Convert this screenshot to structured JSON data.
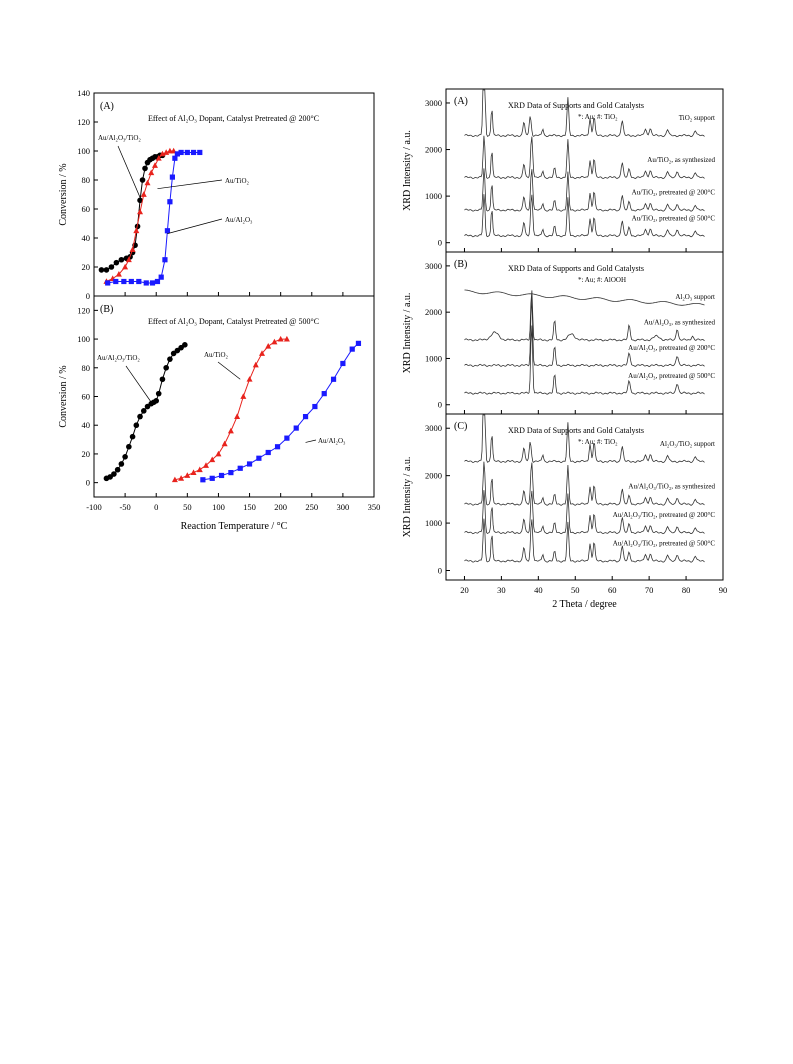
{
  "chart_data": [
    {
      "type": "scatter",
      "panel": "(A)",
      "title": "Effect of Al₂O₃ Dopant,  Catalyst Pretreated @ 200°C",
      "ylabel": "Conversion / %",
      "ylim": [
        0,
        140
      ],
      "yticks": [
        "0",
        "20",
        "40",
        "60",
        "80",
        "100",
        "120",
        "140"
      ],
      "xlim": [
        -100,
        350
      ],
      "series": [
        {
          "name": "Au/Al₂O₃/TiO₂",
          "color": "#000000",
          "marker": "circle",
          "x": [
            -88,
            -80,
            -72,
            -64,
            -56,
            -48,
            -42,
            -38,
            -34,
            -30,
            -26,
            -22,
            -18,
            -14,
            -10,
            -6,
            -2,
            2,
            6,
            10
          ],
          "y": [
            18,
            18,
            20,
            23,
            25,
            26,
            27,
            30,
            35,
            48,
            66,
            80,
            88,
            92,
            94,
            95,
            96,
            96,
            97,
            97
          ]
        },
        {
          "name": "Au/TiO₂",
          "color": "#e8231d",
          "marker": "triangle",
          "x": [
            -80,
            -70,
            -60,
            -50,
            -44,
            -38,
            -32,
            -26,
            -20,
            -14,
            -8,
            -2,
            4,
            10,
            16,
            22,
            28
          ],
          "y": [
            10,
            12,
            15,
            20,
            25,
            32,
            45,
            58,
            70,
            78,
            85,
            90,
            95,
            98,
            99,
            100,
            100
          ]
        },
        {
          "name": "Au/Al₂O₃",
          "color": "#1a1aff",
          "marker": "square",
          "x": [
            -78,
            -65,
            -52,
            -40,
            -28,
            -16,
            -6,
            2,
            8,
            14,
            18,
            22,
            26,
            30,
            34,
            40,
            50,
            60,
            70
          ],
          "y": [
            9,
            10,
            10,
            10,
            10,
            9,
            9,
            10,
            13,
            25,
            45,
            65,
            82,
            95,
            98,
            99,
            99,
            99,
            99
          ]
        }
      ],
      "annotations": [
        "Au/Al₂O₃/TiO₂",
        "Au/TiO₂",
        "Au/Al₂O₃"
      ]
    },
    {
      "type": "scatter",
      "panel": "(B)",
      "title": "Effect of Al₂O₃ Dopant,  Catalyst Pretreated @ 500°C",
      "xlabel": "Reaction Temperature / °C",
      "ylabel": "Conversion / %",
      "ylim": [
        -10,
        130
      ],
      "xlim": [
        -100,
        350
      ],
      "yticks": [
        "0",
        "20",
        "40",
        "60",
        "80",
        "100",
        "120"
      ],
      "xticks": [
        "-100",
        "-50",
        "0",
        "50",
        "100",
        "150",
        "200",
        "250",
        "300",
        "350"
      ],
      "series": [
        {
          "name": "Au/Al₂O₃/TiO₂",
          "color": "#000000",
          "marker": "circle",
          "x": [
            -80,
            -74,
            -68,
            -62,
            -56,
            -50,
            -44,
            -38,
            -32,
            -26,
            -20,
            -14,
            -8,
            -4,
            0,
            4,
            10,
            16,
            22,
            28,
            34,
            40,
            46
          ],
          "y": [
            3,
            4,
            6,
            9,
            13,
            18,
            25,
            32,
            40,
            46,
            50,
            53,
            55,
            56,
            57,
            62,
            72,
            80,
            86,
            90,
            92,
            94,
            96
          ]
        },
        {
          "name": "Au/TiO₂",
          "color": "#e8231d",
          "marker": "triangle",
          "x": [
            30,
            40,
            50,
            60,
            70,
            80,
            90,
            100,
            110,
            120,
            130,
            140,
            150,
            160,
            170,
            180,
            190,
            200,
            210
          ],
          "y": [
            2,
            3,
            5,
            7,
            9,
            12,
            16,
            20,
            27,
            36,
            46,
            60,
            72,
            82,
            90,
            95,
            98,
            100,
            100
          ]
        },
        {
          "name": "Au/Al₂O₃",
          "color": "#1a1aff",
          "marker": "square",
          "x": [
            75,
            90,
            105,
            120,
            135,
            150,
            165,
            180,
            195,
            210,
            225,
            240,
            255,
            270,
            285,
            300,
            315,
            325
          ],
          "y": [
            2,
            3,
            5,
            7,
            10,
            13,
            17,
            21,
            25,
            31,
            38,
            46,
            53,
            62,
            72,
            83,
            93,
            97
          ]
        }
      ],
      "annotations": [
        "Au/Al₂O₃/TiO₂",
        "Au/TiO₂",
        "Au/Al₂O₃"
      ]
    },
    {
      "type": "line",
      "panel": "(A)",
      "title": "XRD Data of Supports and Gold Catalysts",
      "legend_note": "*: Au; #: TiO₂",
      "ylabel": "XRD Intensity / a.u.",
      "ylim": [
        -200,
        3300
      ],
      "yticks": [
        "0",
        "1000",
        "2000",
        "3000"
      ],
      "xlim": [
        15,
        90
      ],
      "traces": [
        {
          "name": "TiO₂ support",
          "offset": 2300,
          "profile": "tio2"
        },
        {
          "name": "Au/TiO₂, as synthesized",
          "offset": 1400,
          "profile": "tio2au"
        },
        {
          "name": "Au/TiO₂, pretreated @ 200°C",
          "offset": 700,
          "profile": "tio2au"
        },
        {
          "name": "Au/TiO₂, pretreated @ 500°C",
          "offset": 150,
          "profile": "tio2au"
        }
      ]
    },
    {
      "type": "line",
      "panel": "(B)",
      "title": "XRD Data of Supports and Gold Catalysts",
      "legend_note": "*: Au; #: AlOOH",
      "ylabel": "XRD Intensity / a.u.",
      "ylim": [
        -200,
        3300
      ],
      "yticks": [
        "0",
        "1000",
        "2000",
        "3000"
      ],
      "xlim": [
        15,
        90
      ],
      "traces": [
        {
          "name": "Al₂O₃ support",
          "offset": 2100,
          "profile": "al2o3support"
        },
        {
          "name": "Au/Al₂O₃, as synthesized",
          "offset": 1400,
          "profile": "alooh"
        },
        {
          "name": "Au/Al₂O₃, pretreated @ 200°C",
          "offset": 850,
          "profile": "al2o3au"
        },
        {
          "name": "Au/Al₂O₃, pretreated @ 500°C",
          "offset": 250,
          "profile": "al2o3au"
        }
      ]
    },
    {
      "type": "line",
      "panel": "(C)",
      "title": "XRD Data of Supports and Gold Catalysts",
      "legend_note": "*: Au; #: TiO₂",
      "xlabel": "2 Theta / degree",
      "ylabel": "XRD Intensity / a.u.",
      "ylim": [
        -200,
        3300
      ],
      "yticks": [
        "0",
        "1000",
        "2000",
        "3000"
      ],
      "xlim": [
        15,
        90
      ],
      "xticks": [
        "20",
        "30",
        "40",
        "50",
        "60",
        "70",
        "80",
        "90"
      ],
      "traces": [
        {
          "name": "Al₂O₃/TiO₂ support",
          "offset": 2300,
          "profile": "tio2"
        },
        {
          "name": "Au/Al₂O₃/TiO₂, as synthesized",
          "offset": 1400,
          "profile": "tio2au"
        },
        {
          "name": "Au/Al₂O₃/TiO₂, pretreated @ 200°C",
          "offset": 800,
          "profile": "tio2au"
        },
        {
          "name": "Au/Al₂O₃/TiO₂, pretreated @ 500°C",
          "offset": 200,
          "profile": "tio2au"
        }
      ]
    }
  ]
}
